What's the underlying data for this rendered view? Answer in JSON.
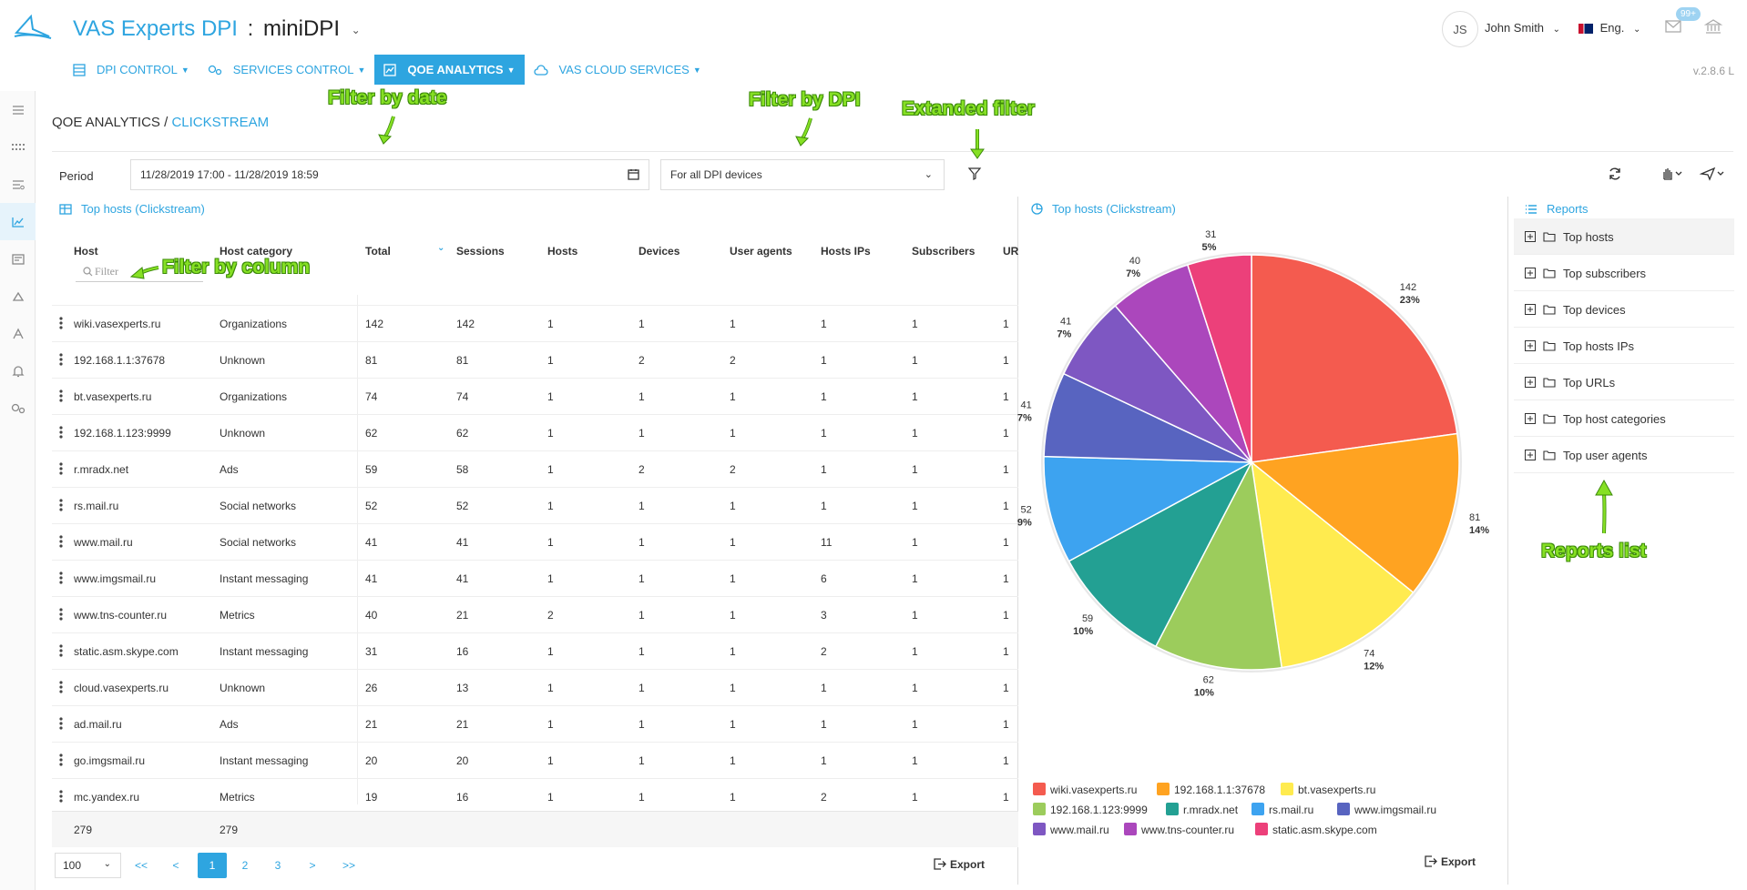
{
  "header": {
    "brand": "VAS Experts DPI",
    "separator": ":",
    "product": "miniDPI",
    "user_initials": "JS",
    "user_name": "John Smith",
    "language": "Eng.",
    "notifications": "99+",
    "version": "v.2.8.6 L"
  },
  "nav": [
    {
      "label": "DPI CONTROL",
      "icon": "server-icon"
    },
    {
      "label": "SERVICES CONTROL",
      "icon": "gears-icon"
    },
    {
      "label": "QOE ANALYTICS",
      "icon": "chart-icon",
      "active": true
    },
    {
      "label": "VAS CLOUD SERVICES",
      "icon": "cloud-icon"
    }
  ],
  "breadcrumb": {
    "root": "QOE ANALYTICS",
    "sep": " / ",
    "current": "CLICKSTREAM"
  },
  "filters": {
    "period_label": "Period",
    "period_value": "11/28/2019 17:00 - 11/28/2019 18:59",
    "dpi_value": "For all DPI devices"
  },
  "table": {
    "title": "Top hosts (Clickstream)",
    "columns": [
      "Host",
      "Host category",
      "Total",
      "Sessions",
      "Hosts",
      "Devices",
      "User agents",
      "Hosts IPs",
      "Subscribers",
      "UR"
    ],
    "filter_placeholder": "Filter",
    "rows": [
      [
        "wiki.vasexperts.ru",
        "Organizations",
        "142",
        "142",
        "1",
        "1",
        "1",
        "1",
        "1",
        "1"
      ],
      [
        "192.168.1.1:37678",
        "Unknown",
        "81",
        "81",
        "1",
        "2",
        "2",
        "1",
        "1",
        "1"
      ],
      [
        "bt.vasexperts.ru",
        "Organizations",
        "74",
        "74",
        "1",
        "1",
        "1",
        "1",
        "1",
        "1"
      ],
      [
        "192.168.1.123:9999",
        "Unknown",
        "62",
        "62",
        "1",
        "1",
        "1",
        "1",
        "1",
        "1"
      ],
      [
        "r.mradx.net",
        "Ads",
        "59",
        "58",
        "1",
        "2",
        "2",
        "1",
        "1",
        "1"
      ],
      [
        "rs.mail.ru",
        "Social networks",
        "52",
        "52",
        "1",
        "1",
        "1",
        "1",
        "1",
        "1"
      ],
      [
        "www.mail.ru",
        "Social networks",
        "41",
        "41",
        "1",
        "1",
        "1",
        "11",
        "1",
        "1"
      ],
      [
        "www.imgsmail.ru",
        "Instant messaging",
        "41",
        "41",
        "1",
        "1",
        "1",
        "6",
        "1",
        "1"
      ],
      [
        "www.tns-counter.ru",
        "Metrics",
        "40",
        "21",
        "2",
        "1",
        "1",
        "3",
        "1",
        "1"
      ],
      [
        "static.asm.skype.com",
        "Instant messaging",
        "31",
        "16",
        "1",
        "1",
        "1",
        "2",
        "1",
        "1"
      ],
      [
        "cloud.vasexperts.ru",
        "Unknown",
        "26",
        "13",
        "1",
        "1",
        "1",
        "1",
        "1",
        "1"
      ],
      [
        "ad.mail.ru",
        "Ads",
        "21",
        "21",
        "1",
        "1",
        "1",
        "1",
        "1",
        "1"
      ],
      [
        "go.imgsmail.ru",
        "Instant messaging",
        "20",
        "20",
        "1",
        "1",
        "1",
        "1",
        "1",
        "1"
      ],
      [
        "mc.yandex.ru",
        "Metrics",
        "19",
        "16",
        "1",
        "1",
        "1",
        "2",
        "1",
        "1"
      ]
    ],
    "footer": [
      "279",
      "279"
    ],
    "page_size": "100",
    "pager": [
      "<<",
      "<",
      "1",
      "2",
      "3",
      ">",
      ">>"
    ],
    "export_label": "Export"
  },
  "chart_panel": {
    "title": "Top hosts (Clickstream)",
    "export_label": "Export"
  },
  "chart_data": {
    "type": "pie",
    "categories": [
      "wiki.vasexperts.ru",
      "192.168.1.1:37678",
      "bt.vasexperts.ru",
      "192.168.1.123:9999",
      "r.mradx.net",
      "rs.mail.ru",
      "www.imgsmail.ru",
      "www.mail.ru",
      "www.tns-counter.ru",
      "static.asm.skype.com"
    ],
    "values": [
      142,
      81,
      74,
      62,
      59,
      52,
      41,
      41,
      40,
      31
    ],
    "percents": [
      "23%",
      "14%",
      "12%",
      "10%",
      "10%",
      "9%",
      "7%",
      "7%",
      "7%",
      "5%"
    ],
    "colors": [
      "#f45b4f",
      "#ffa321",
      "#ffeb4f",
      "#9ccc5c",
      "#23a093",
      "#3da3f0",
      "#5864c0",
      "#7e57c2",
      "#ab47bc",
      "#ec407a"
    ],
    "legend_position": "bottom"
  },
  "reports": {
    "title": "Reports",
    "items": [
      "Top hosts",
      "Top subscribers",
      "Top devices",
      "Top hosts IPs",
      "Top URLs",
      "Top host categories",
      "Top user agents"
    ]
  },
  "annotations": {
    "filter_date": "Filter by date",
    "filter_dpi": "Filter by DPI",
    "extended": "Extanded filter",
    "filter_column": "Filter by column",
    "reports_list": "Reports list"
  }
}
